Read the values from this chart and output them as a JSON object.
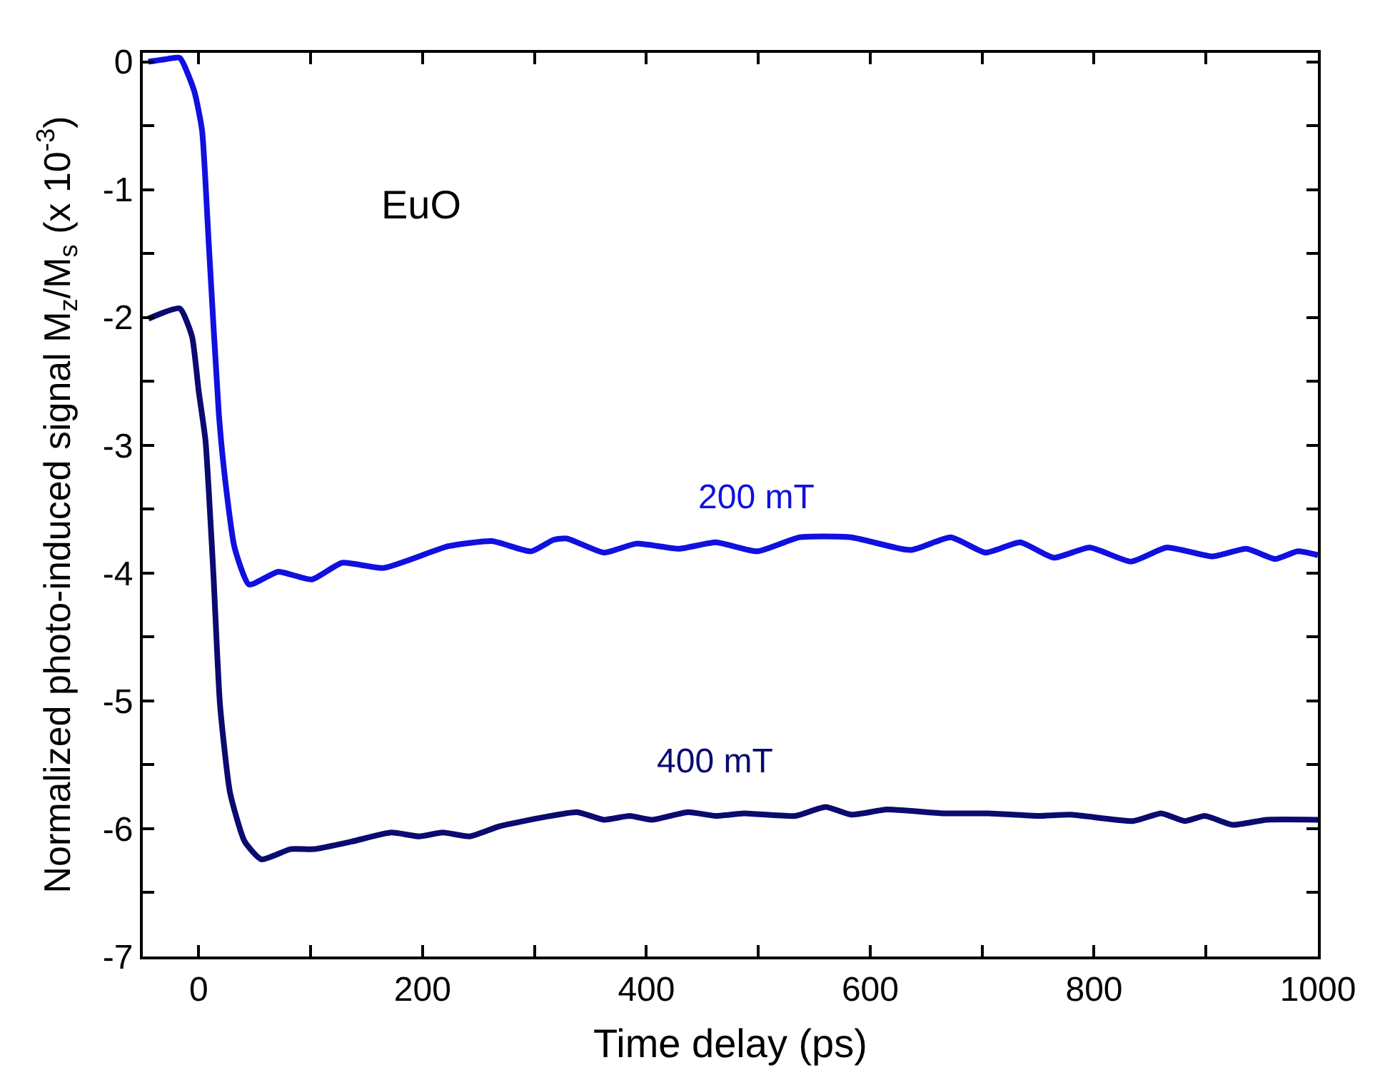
{
  "chart_data": {
    "type": "line",
    "xlabel": "Time delay (ps)",
    "ylabel": "Normalized photo-induced signal M$_{z}$/M$_{s}$ (x 10$^{-3}$)",
    "annotations": [
      "EuO"
    ],
    "xlim": [
      -50,
      1000
    ],
    "ylim": [
      -7,
      0.07
    ],
    "xticks": [
      0,
      {
        "value": 100,
        "label": null
      },
      200,
      {
        "value": 300,
        "label": null
      },
      400,
      {
        "value": 500,
        "label": null
      },
      600,
      {
        "value": 700,
        "label": null
      },
      800,
      {
        "value": 900,
        "label": null
      },
      1000
    ],
    "yticks": [
      -7,
      {
        "value": -6.5,
        "label": null
      },
      -6,
      {
        "value": -5.5,
        "label": null
      },
      -5,
      {
        "value": -4.5,
        "label": null
      },
      -4,
      {
        "value": -3.5,
        "label": null
      },
      -3,
      {
        "value": -2.5,
        "label": null
      },
      -2,
      {
        "value": -1.5,
        "label": null
      },
      -1,
      {
        "value": -0.5,
        "label": null
      },
      0
    ],
    "legend": false,
    "marker": "none",
    "line_style": "solid",
    "series": [
      {
        "name": "200 mT",
        "color": "#1010e0",
        "x": [
          -45,
          -30,
          -17,
          -4,
          3,
          9,
          18,
          24,
          32,
          45,
          71,
          101,
          128,
          165,
          223,
          262,
          297,
          317,
          329,
          362,
          391,
          429,
          462,
          499,
          537,
          583,
          636,
          672,
          703,
          734,
          764,
          796,
          833,
          865,
          906,
          936,
          962,
          982,
          1000
        ],
        "values": [
          0.0,
          0.02,
          0.03,
          -0.23,
          -0.54,
          -1.43,
          -2.76,
          -3.3,
          -3.8,
          -4.09,
          -3.99,
          -4.05,
          -3.92,
          -3.96,
          -3.79,
          -3.75,
          -3.83,
          -3.74,
          -3.73,
          -3.84,
          -3.77,
          -3.81,
          -3.76,
          -3.83,
          -3.72,
          -3.72,
          -3.82,
          -3.72,
          -3.84,
          -3.76,
          -3.88,
          -3.8,
          -3.91,
          -3.8,
          -3.87,
          -3.81,
          -3.89,
          -3.83,
          -3.86
        ]
      },
      {
        "name": "400 mT",
        "color": "#0a0a70",
        "x": [
          -45,
          -17,
          -6,
          0,
          6,
          13,
          19,
          28,
          41,
          56,
          82,
          103,
          137,
          172,
          197,
          218,
          242,
          269,
          308,
          338,
          362,
          385,
          405,
          437,
          462,
          487,
          533,
          560,
          583,
          615,
          665,
          706,
          750,
          779,
          835,
          860,
          881,
          899,
          924,
          954,
          1000
        ],
        "values": [
          -2.01,
          -1.93,
          -2.15,
          -2.58,
          -2.96,
          -3.99,
          -5.03,
          -5.72,
          -6.1,
          -6.24,
          -6.16,
          -6.16,
          -6.1,
          -6.03,
          -6.06,
          -6.03,
          -6.06,
          -5.98,
          -5.91,
          -5.87,
          -5.93,
          -5.9,
          -5.93,
          -5.87,
          -5.9,
          -5.88,
          -5.9,
          -5.83,
          -5.89,
          -5.85,
          -5.88,
          -5.88,
          -5.9,
          -5.89,
          -5.94,
          -5.88,
          -5.94,
          -5.9,
          -5.97,
          -5.93,
          -5.93
        ]
      }
    ]
  }
}
